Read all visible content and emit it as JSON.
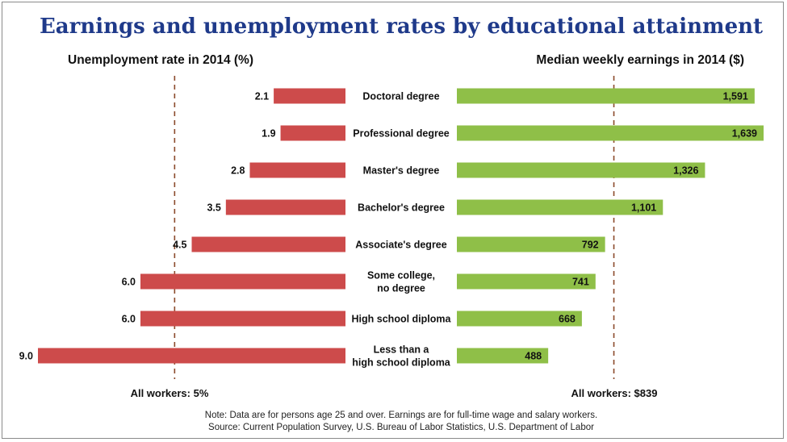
{
  "chart_data": {
    "type": "bar",
    "title": "Earnings and unemployment rates by educational attainment",
    "categories": [
      [
        "Doctoral degree"
      ],
      [
        "Professional degree"
      ],
      [
        "Master's degree"
      ],
      [
        "Bachelor's degree"
      ],
      [
        "Associate's degree"
      ],
      [
        "Some college,",
        "no degree"
      ],
      [
        "High school diploma"
      ],
      [
        "Less than a",
        "high school diploma"
      ]
    ],
    "series": [
      {
        "name": "Unemployment rate in 2014 (%)",
        "values": [
          2.1,
          1.9,
          2.8,
          3.5,
          4.5,
          6.0,
          6.0,
          9.0
        ],
        "labels": [
          "2.1",
          "1.9",
          "2.8",
          "3.5",
          "4.5",
          "6.0",
          "6.0",
          "9.0"
        ],
        "color": "#cd4b4b",
        "xlim": [
          0,
          9.0
        ],
        "reference": {
          "value": 5,
          "label": "All workers: 5%"
        }
      },
      {
        "name": "Median weekly earnings in 2014 ($)",
        "values": [
          1591,
          1639,
          1326,
          1101,
          792,
          741,
          668,
          488
        ],
        "labels": [
          "1,591",
          "1,639",
          "1,326",
          "1,101",
          "792",
          "741",
          "668",
          "488"
        ],
        "color": "#8fbf48",
        "xlim": [
          0,
          1639
        ],
        "reference": {
          "value": 839,
          "label": "All workers: $839"
        }
      }
    ],
    "notes": [
      "Note: Data are for persons age 25 and over. Earnings are for full-time wage and salary workers.",
      "Source: Current Population Survey, U.S. Bureau of Labor Statistics, U.S. Department of Labor"
    ]
  }
}
